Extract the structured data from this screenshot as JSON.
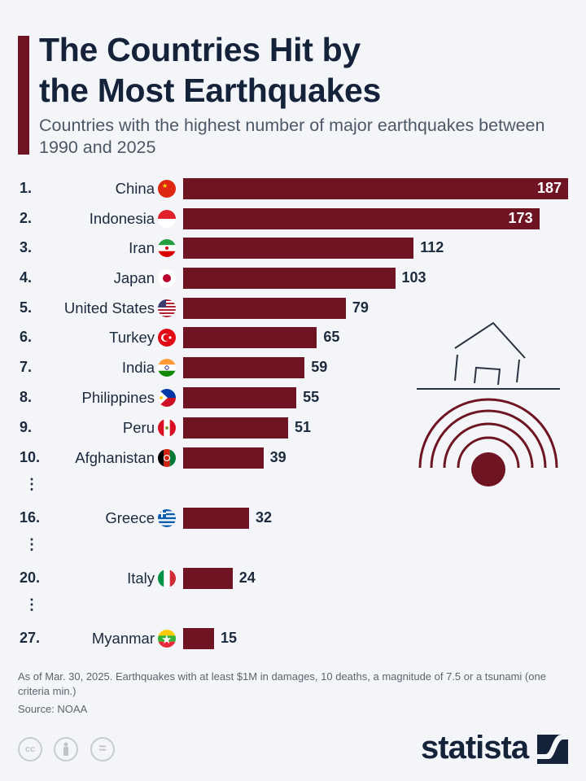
{
  "header": {
    "title_line1": "The Countries Hit by",
    "title_line2": "the Most Earthquakes",
    "subtitle": "Countries with the highest number of major earthquakes between 1990 and 2025"
  },
  "chart_data": {
    "type": "bar",
    "orientation": "horizontal",
    "title": "The Countries Hit by the Most Earthquakes",
    "subtitle": "Countries with the highest number of major earthquakes between 1990 and 2025",
    "categories": [
      "China",
      "Indonesia",
      "Iran",
      "Japan",
      "United States",
      "Turkey",
      "India",
      "Philippines",
      "Peru",
      "Afghanistan",
      "Greece",
      "Italy",
      "Myanmar"
    ],
    "ranks": [
      "1.",
      "2.",
      "3.",
      "4.",
      "5.",
      "6.",
      "7.",
      "8.",
      "9.",
      "10.",
      "16.",
      "20.",
      "27."
    ],
    "values": [
      187,
      173,
      112,
      103,
      79,
      65,
      59,
      55,
      51,
      39,
      32,
      24,
      15
    ],
    "flags": [
      "china-flag",
      "indonesia-flag",
      "iran-flag",
      "japan-flag",
      "us-flag",
      "turkey-flag",
      "india-flag",
      "philippines-flag",
      "peru-flag",
      "afghanistan-flag",
      "greece-flag",
      "italy-flag",
      "myanmar-flag"
    ],
    "bar_color": "#6e1423",
    "xlim": [
      0,
      187
    ],
    "grid": false,
    "ellipsis": "⋮"
  },
  "footer": {
    "note": "As of Mar. 30, 2025. Earthquakes with at least $1M in damages, 10 deaths, a magnitude of 7.5 or a tsunami (one criteria min.)",
    "source": "Source: NOAA",
    "logo": "statista",
    "license_icons": [
      "cc",
      "by",
      "nd"
    ],
    "cc_label": "cc",
    "nd_label": "="
  }
}
